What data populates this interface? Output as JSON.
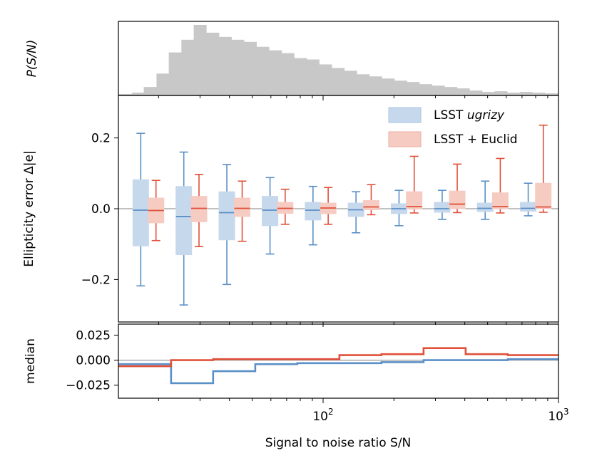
{
  "chart_data": [
    {
      "panel": "top",
      "type": "histogram",
      "ylabel": "P(S/N)",
      "xscale": "log",
      "xlim": [
        13.5,
        1000
      ],
      "bar_color": "#c8c8c8",
      "bin_edges": [
        13.5,
        15.4,
        17.3,
        19.6,
        22.1,
        25.0,
        28.2,
        31.9,
        36.1,
        40.8,
        46.1,
        52.1,
        58.9,
        66.6,
        75.3,
        85.1,
        96.2,
        108.8,
        123.0,
        139.0,
        157.1,
        177.6,
        200.8,
        227.0,
        256.6,
        290.1,
        327.9,
        370.7,
        419.0,
        473.7,
        535.5,
        605.3,
        684.3,
        773.5,
        874.4,
        1000
      ],
      "heights": [
        0.02,
        0.04,
        0.12,
        0.31,
        0.61,
        0.79,
        1.0,
        0.89,
        0.83,
        0.79,
        0.76,
        0.69,
        0.64,
        0.6,
        0.53,
        0.51,
        0.44,
        0.39,
        0.35,
        0.3,
        0.27,
        0.24,
        0.21,
        0.19,
        0.16,
        0.14,
        0.12,
        0.1,
        0.07,
        0.05,
        0.06,
        0.04,
        0.05,
        0.04,
        0.03
      ]
    },
    {
      "panel": "middle",
      "type": "box",
      "ylabel": "Ellipticity error Δ|e|",
      "xscale": "log",
      "xlim": [
        13.5,
        1000
      ],
      "ylim": [
        -0.32,
        0.32
      ],
      "yticks": [
        -0.2,
        0.0,
        0.2
      ],
      "ytick_labels": [
        "−0.2",
        "0.0",
        "0.2"
      ],
      "hline": 0.0,
      "legend_position": "upper-right",
      "series": [
        {
          "name": "LSST ugrizy",
          "name_plain": "LSST ",
          "name_italic": "ugrizy",
          "color": "#5b8fc7",
          "fill": "#c6d8ec",
          "boxes": [
            {
              "x": 16.8,
              "whislo": -0.218,
              "q1": -0.105,
              "med": -0.004,
              "q3": 0.082,
              "whishi": 0.213
            },
            {
              "x": 25.6,
              "whislo": -0.272,
              "q1": -0.13,
              "med": -0.022,
              "q3": 0.063,
              "whishi": 0.16
            },
            {
              "x": 39.0,
              "whislo": -0.214,
              "q1": -0.088,
              "med": -0.011,
              "q3": 0.048,
              "whishi": 0.125
            },
            {
              "x": 59.5,
              "whislo": -0.128,
              "q1": -0.048,
              "med": -0.004,
              "q3": 0.035,
              "whishi": 0.088
            },
            {
              "x": 90.6,
              "whislo": -0.102,
              "q1": -0.032,
              "med": -0.004,
              "q3": 0.018,
              "whishi": 0.063
            },
            {
              "x": 138.0,
              "whislo": -0.068,
              "q1": -0.022,
              "med": -0.003,
              "q3": 0.016,
              "whishi": 0.048
            },
            {
              "x": 210.2,
              "whislo": -0.048,
              "q1": -0.014,
              "med": 0.0,
              "q3": 0.014,
              "whishi": 0.052
            },
            {
              "x": 320.5,
              "whislo": -0.03,
              "q1": -0.01,
              "med": 0.0,
              "q3": 0.018,
              "whishi": 0.052
            },
            {
              "x": 488.0,
              "whislo": -0.03,
              "q1": -0.008,
              "med": 0.001,
              "q3": 0.016,
              "whishi": 0.078
            },
            {
              "x": 743.7,
              "whislo": -0.02,
              "q1": -0.007,
              "med": 0.001,
              "q3": 0.018,
              "whishi": 0.072
            }
          ]
        },
        {
          "name": "LSST + Euclid",
          "color": "#e0503a",
          "fill": "#f5cbc2",
          "boxes": [
            {
              "x": 19.5,
              "whislo": -0.09,
              "q1": -0.04,
              "med": -0.005,
              "q3": 0.03,
              "whishi": 0.08
            },
            {
              "x": 29.7,
              "whislo": -0.107,
              "q1": -0.037,
              "med": 0.001,
              "q3": 0.035,
              "whishi": 0.097
            },
            {
              "x": 45.3,
              "whislo": -0.092,
              "q1": -0.022,
              "med": 0.001,
              "q3": 0.03,
              "whishi": 0.078
            },
            {
              "x": 69.0,
              "whislo": -0.044,
              "q1": -0.013,
              "med": 0.001,
              "q3": 0.018,
              "whishi": 0.055
            },
            {
              "x": 105.1,
              "whislo": -0.044,
              "q1": -0.014,
              "med": 0.002,
              "q3": 0.016,
              "whishi": 0.06
            },
            {
              "x": 160.1,
              "whislo": -0.017,
              "q1": -0.003,
              "med": 0.005,
              "q3": 0.023,
              "whishi": 0.068
            },
            {
              "x": 243.8,
              "whislo": -0.012,
              "q1": -0.001,
              "med": 0.006,
              "q3": 0.048,
              "whishi": 0.148
            },
            {
              "x": 371.4,
              "whislo": -0.011,
              "q1": 0.0,
              "med": 0.013,
              "q3": 0.05,
              "whishi": 0.126
            },
            {
              "x": 565.9,
              "whislo": -0.012,
              "q1": 0.0,
              "med": 0.006,
              "q3": 0.045,
              "whishi": 0.142
            },
            {
              "x": 862.1,
              "whislo": -0.01,
              "q1": 0.0,
              "med": 0.005,
              "q3": 0.072,
              "whishi": 0.236
            }
          ]
        }
      ]
    },
    {
      "panel": "bottom",
      "type": "step",
      "ylabel": "median",
      "xlabel": "Signal to noise ratio S/N",
      "xscale": "log",
      "xlim": [
        13.5,
        1000
      ],
      "ylim": [
        -0.038,
        0.036
      ],
      "yticks": [
        -0.025,
        0.0,
        0.025
      ],
      "ytick_labels": [
        "−0.025",
        "0.000",
        "0.025"
      ],
      "xtick_major": [
        {
          "base": "10",
          "exp": "2",
          "value": 100
        },
        {
          "base": "10",
          "exp": "3",
          "value": 1000
        }
      ],
      "hline": 0.0,
      "bin_edges": [
        13.5,
        22.6,
        34.1,
        51.5,
        77.7,
        117.3,
        177.0,
        267.2,
        403.3,
        608.8,
        1000
      ],
      "series": [
        {
          "name": "LSST ugrizy",
          "color": "#5b8fc7",
          "values": [
            -0.004,
            -0.023,
            -0.011,
            -0.004,
            -0.003,
            -0.003,
            -0.002,
            0.0,
            0.0,
            0.001
          ]
        },
        {
          "name": "LSST + Euclid",
          "color": "#e0503a",
          "values": [
            -0.006,
            0.0,
            0.001,
            0.001,
            0.001,
            0.005,
            0.006,
            0.012,
            0.006,
            0.005
          ]
        }
      ]
    }
  ]
}
